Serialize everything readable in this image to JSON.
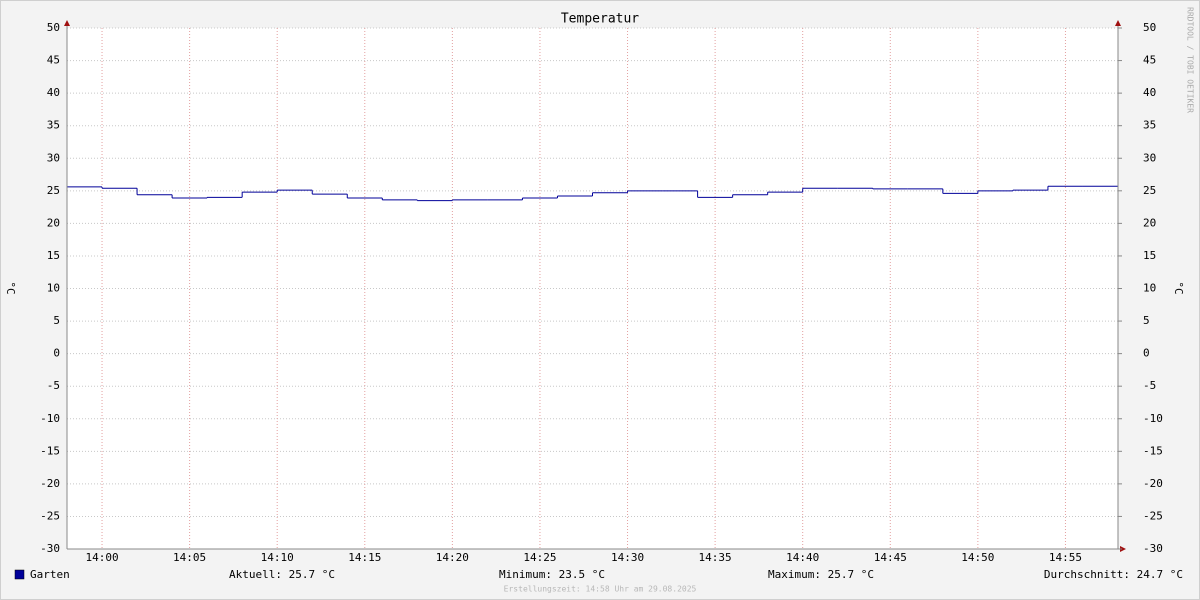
{
  "chart_data": {
    "type": "step-line",
    "title": "Temperatur",
    "ylabel": "°C",
    "y2label": "°C",
    "watermark": "RRDTOOL / TOBI OETIKER",
    "x": [
      "13:58",
      "14:00",
      "14:02",
      "14:04",
      "14:06",
      "14:08",
      "14:10",
      "14:12",
      "14:14",
      "14:16",
      "14:18",
      "14:20",
      "14:22",
      "14:24",
      "14:26",
      "14:28",
      "14:30",
      "14:32",
      "14:34",
      "14:36",
      "14:38",
      "14:40",
      "14:42",
      "14:44",
      "14:46",
      "14:48",
      "14:50",
      "14:52",
      "14:54",
      "14:56"
    ],
    "xlim": [
      "13:58",
      "14:58"
    ],
    "xticks": [
      "14:00",
      "14:05",
      "14:10",
      "14:15",
      "14:20",
      "14:25",
      "14:30",
      "14:35",
      "14:40",
      "14:45",
      "14:50",
      "14:55"
    ],
    "series": [
      {
        "name": "Garten",
        "color": "#000099",
        "values": [
          25.6,
          25.4,
          24.4,
          23.9,
          24.0,
          24.8,
          25.1,
          24.5,
          23.9,
          23.6,
          23.5,
          23.6,
          23.6,
          23.9,
          24.2,
          24.7,
          25.0,
          25.0,
          24.0,
          24.4,
          24.8,
          25.4,
          25.4,
          25.3,
          25.3,
          24.6,
          25.0,
          25.1,
          25.7,
          25.7
        ]
      }
    ],
    "ylim": [
      -30,
      50
    ],
    "yticks": [
      -30,
      -25,
      -20,
      -15,
      -10,
      -5,
      0,
      5,
      10,
      15,
      20,
      25,
      30,
      35,
      40,
      45,
      50
    ],
    "y2lim": [
      -30,
      50
    ],
    "y2ticks": [
      -30,
      -25,
      -20,
      -15,
      -10,
      -5,
      0,
      5,
      10,
      15,
      20,
      25,
      30,
      35,
      40,
      45,
      50
    ],
    "grid": true,
    "stats": [
      "Aktuell: 25.7 °C",
      "Minimum: 23.5 °C",
      "Maximum: 25.7 °C",
      "Durchschnitt: 24.7 °C"
    ],
    "footer": "Erstellungszeit: 14:58 Uhr am 29.08.2025"
  }
}
